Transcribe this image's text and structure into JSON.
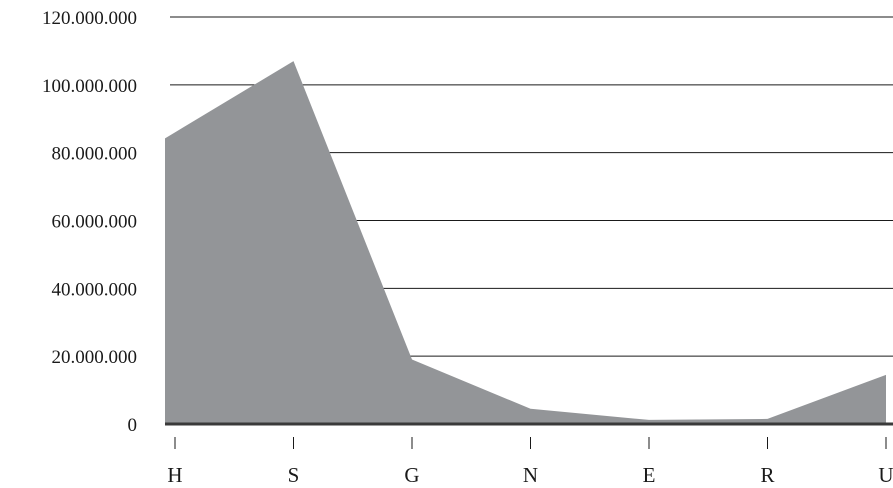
{
  "chart_data": {
    "type": "area",
    "title": "",
    "xlabel": "",
    "ylabel": "",
    "categories": [
      "H",
      "S",
      "G",
      "N",
      "E",
      "R",
      "U"
    ],
    "values": [
      86000000,
      107000000,
      19000000,
      4500000,
      1200000,
      1500000,
      14500000
    ],
    "ylim": [
      0,
      120000000
    ],
    "y_ticks": [
      0,
      20000000,
      40000000,
      60000000,
      80000000,
      100000000,
      120000000
    ],
    "y_tick_labels": [
      "0",
      "20.000.000",
      "40.000.000",
      "60.000.000",
      "80.000.000",
      "100.000.000",
      "120.000.000"
    ],
    "grid": true,
    "legend": "none",
    "colors": {
      "area": "#939598",
      "grid": "#1a1a1a",
      "baseline": "#3a3a3a"
    }
  }
}
